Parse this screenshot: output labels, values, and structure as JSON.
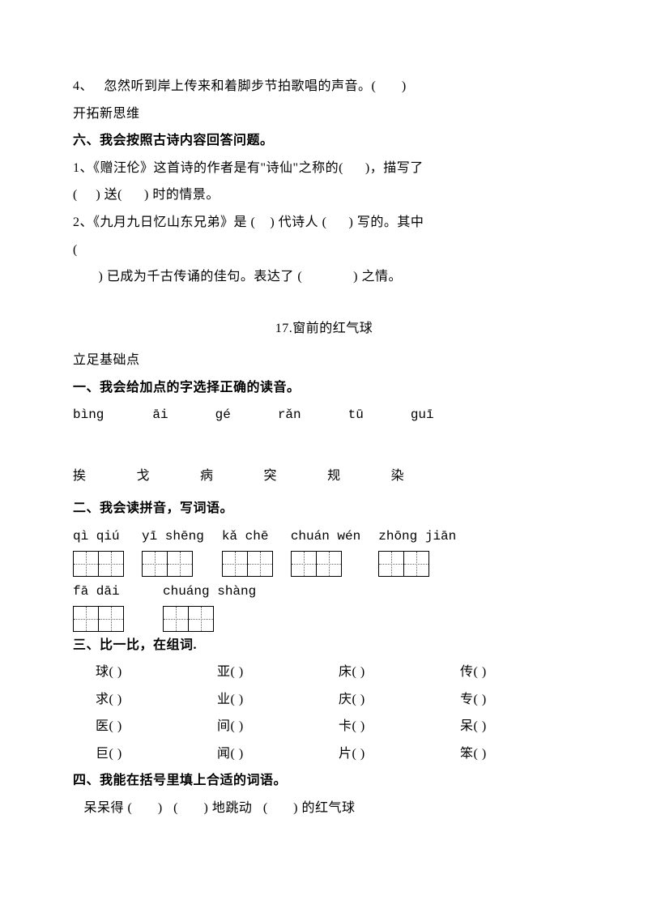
{
  "q4": "4、   忽然听到岸上传来和着脚步节拍歌唱的声音。(       )",
  "open": "开拓新思维",
  "sec6_heading": "六、我会按照古诗内容回答问题。",
  "sec6_q1": "1、《赠汪伦》这首诗的作者是有\"诗仙\"之称的(      )，描写了",
  "sec6_q1b": "(     ) 送(      ) 时的情景。",
  "sec6_q2": "2、《九月九日忆山东兄弟》是 (    ) 代诗人 (      ) 写的。其中",
  "sec6_q2b": "(",
  "sec6_q2c": "       ) 已成为千古传诵的佳句。表达了 (              ) 之情。",
  "lesson_title": "17.窗前的红气球",
  "base": "立足基础点",
  "sec1_heading": "一、我会给加点的字选择正确的读音。",
  "pinyin_line": [
    "bìng",
    "āi",
    "gé",
    "rǎn",
    "tū",
    "guī"
  ],
  "hanzi_line": [
    "挨",
    "戈",
    "病",
    "突",
    "规",
    "染"
  ],
  "sec2_heading": "二、我会读拼音，写词语。",
  "pinyin_groups1": [
    {
      "p": "qì qiú",
      "n": 2
    },
    {
      "p": "yī shēng",
      "n": 2
    },
    {
      "p": "kǎ chē",
      "n": 2
    },
    {
      "p": "chuán wén",
      "n": 2
    },
    {
      "p": "zhōng jiān",
      "n": 2
    }
  ],
  "pinyin_groups2": [
    {
      "p": "fā dāi",
      "n": 2
    },
    {
      "p": "chuáng shàng",
      "n": 2
    }
  ],
  "sec3_heading": "三、比一比，在组词.",
  "sec3_rows": [
    [
      "球(       )",
      "亚(       )",
      "床(       )",
      "传(       )"
    ],
    [
      "求(       )",
      "业(       )",
      "庆(       )",
      "专(       )"
    ],
    [
      "医(       )",
      "间(       )",
      "卡(       )",
      "呆(       )"
    ],
    [
      "巨(       )",
      "闻(       )",
      "片(       )",
      "笨(       )"
    ]
  ],
  "sec4_heading": "四、我能在括号里填上合适的词语。",
  "sec4_line": "   呆呆得 (       )   (       ) 地跳动   (       ) 的红气球",
  "colors": {
    "text": "#000000",
    "background": "#ffffff",
    "grid": "#666666"
  },
  "fonts": {
    "body": "SimSun",
    "size_pt": 12,
    "line_height": 2.1
  }
}
